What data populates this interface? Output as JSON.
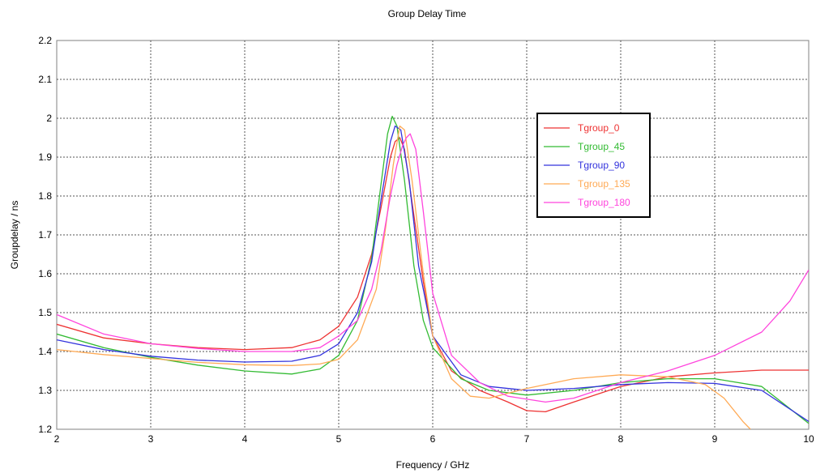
{
  "chart_data": {
    "type": "line",
    "title": "Group Delay Time",
    "xlabel": "Frequency / GHz",
    "ylabel": "Groupdelay / ns",
    "xlim": [
      2,
      10
    ],
    "ylim": [
      1.2,
      2.2
    ],
    "xticks": [
      "2",
      "3",
      "4",
      "5",
      "6",
      "7",
      "8",
      "9",
      "10"
    ],
    "yticks": [
      "1.2",
      "1.3",
      "1.4",
      "1.5",
      "1.6",
      "1.7",
      "1.8",
      "1.9",
      "2",
      "2.1",
      "2.2"
    ],
    "grid": true,
    "legend_position": "top-right",
    "series": [
      {
        "name": "Tgroup_0",
        "color": "#ee3333",
        "points": [
          [
            2,
            1.47
          ],
          [
            2.5,
            1.435
          ],
          [
            3,
            1.42
          ],
          [
            3.5,
            1.41
          ],
          [
            4,
            1.405
          ],
          [
            4.5,
            1.41
          ],
          [
            4.8,
            1.43
          ],
          [
            5,
            1.465
          ],
          [
            5.2,
            1.54
          ],
          [
            5.35,
            1.65
          ],
          [
            5.45,
            1.77
          ],
          [
            5.55,
            1.9
          ],
          [
            5.6,
            1.94
          ],
          [
            5.65,
            1.95
          ],
          [
            5.7,
            1.92
          ],
          [
            5.8,
            1.75
          ],
          [
            5.9,
            1.58
          ],
          [
            6,
            1.44
          ],
          [
            6.2,
            1.35
          ],
          [
            6.5,
            1.3
          ],
          [
            6.8,
            1.27
          ],
          [
            7,
            1.248
          ],
          [
            7.2,
            1.245
          ],
          [
            7.5,
            1.27
          ],
          [
            8,
            1.31
          ],
          [
            8.5,
            1.335
          ],
          [
            9,
            1.345
          ],
          [
            9.5,
            1.352
          ],
          [
            10,
            1.352
          ]
        ]
      },
      {
        "name": "Tgroup_45",
        "color": "#33bb33",
        "points": [
          [
            2,
            1.445
          ],
          [
            2.5,
            1.41
          ],
          [
            3,
            1.385
          ],
          [
            3.5,
            1.365
          ],
          [
            4,
            1.35
          ],
          [
            4.5,
            1.342
          ],
          [
            4.8,
            1.355
          ],
          [
            5,
            1.39
          ],
          [
            5.2,
            1.48
          ],
          [
            5.35,
            1.64
          ],
          [
            5.45,
            1.83
          ],
          [
            5.52,
            1.96
          ],
          [
            5.57,
            2.005
          ],
          [
            5.62,
            1.98
          ],
          [
            5.7,
            1.84
          ],
          [
            5.8,
            1.62
          ],
          [
            5.9,
            1.48
          ],
          [
            6,
            1.41
          ],
          [
            6.3,
            1.33
          ],
          [
            6.6,
            1.3
          ],
          [
            7,
            1.288
          ],
          [
            7.5,
            1.3
          ],
          [
            8,
            1.32
          ],
          [
            8.5,
            1.33
          ],
          [
            9,
            1.33
          ],
          [
            9.5,
            1.31
          ],
          [
            10,
            1.215
          ]
        ]
      },
      {
        "name": "Tgroup_90",
        "color": "#3333dd",
        "points": [
          [
            2,
            1.43
          ],
          [
            2.5,
            1.405
          ],
          [
            3,
            1.388
          ],
          [
            3.5,
            1.378
          ],
          [
            4,
            1.373
          ],
          [
            4.5,
            1.375
          ],
          [
            4.8,
            1.39
          ],
          [
            5,
            1.42
          ],
          [
            5.2,
            1.5
          ],
          [
            5.35,
            1.63
          ],
          [
            5.45,
            1.79
          ],
          [
            5.55,
            1.94
          ],
          [
            5.6,
            1.98
          ],
          [
            5.66,
            1.97
          ],
          [
            5.75,
            1.84
          ],
          [
            5.85,
            1.62
          ],
          [
            6,
            1.44
          ],
          [
            6.3,
            1.34
          ],
          [
            6.6,
            1.31
          ],
          [
            7,
            1.3
          ],
          [
            7.5,
            1.305
          ],
          [
            8,
            1.315
          ],
          [
            8.5,
            1.32
          ],
          [
            9,
            1.318
          ],
          [
            9.5,
            1.3
          ],
          [
            10,
            1.22
          ]
        ]
      },
      {
        "name": "Tgroup_135",
        "color": "#ffaa55",
        "points": [
          [
            2,
            1.405
          ],
          [
            2.5,
            1.392
          ],
          [
            3,
            1.382
          ],
          [
            3.5,
            1.372
          ],
          [
            4,
            1.366
          ],
          [
            4.5,
            1.364
          ],
          [
            4.8,
            1.368
          ],
          [
            5,
            1.38
          ],
          [
            5.2,
            1.43
          ],
          [
            5.4,
            1.56
          ],
          [
            5.5,
            1.72
          ],
          [
            5.58,
            1.88
          ],
          [
            5.65,
            1.98
          ],
          [
            5.7,
            1.97
          ],
          [
            5.78,
            1.84
          ],
          [
            5.9,
            1.6
          ],
          [
            6,
            1.44
          ],
          [
            6.2,
            1.33
          ],
          [
            6.4,
            1.285
          ],
          [
            6.6,
            1.28
          ],
          [
            7,
            1.305
          ],
          [
            7.5,
            1.33
          ],
          [
            8,
            1.34
          ],
          [
            8.5,
            1.335
          ],
          [
            8.9,
            1.315
          ],
          [
            9.1,
            1.28
          ],
          [
            9.3,
            1.22
          ],
          [
            9.38,
            1.2
          ]
        ]
      },
      {
        "name": "Tgroup_180",
        "color": "#ff44dd",
        "points": [
          [
            2,
            1.495
          ],
          [
            2.5,
            1.445
          ],
          [
            3,
            1.42
          ],
          [
            3.5,
            1.408
          ],
          [
            4,
            1.4
          ],
          [
            4.5,
            1.4
          ],
          [
            4.8,
            1.41
          ],
          [
            5,
            1.44
          ],
          [
            5.2,
            1.48
          ],
          [
            5.35,
            1.56
          ],
          [
            5.45,
            1.66
          ],
          [
            5.55,
            1.8
          ],
          [
            5.62,
            1.88
          ],
          [
            5.68,
            1.93
          ],
          [
            5.72,
            1.95
          ],
          [
            5.76,
            1.96
          ],
          [
            5.82,
            1.92
          ],
          [
            5.9,
            1.76
          ],
          [
            6,
            1.55
          ],
          [
            6.2,
            1.39
          ],
          [
            6.5,
            1.32
          ],
          [
            6.8,
            1.285
          ],
          [
            7.2,
            1.27
          ],
          [
            7.5,
            1.28
          ],
          [
            8,
            1.32
          ],
          [
            8.5,
            1.35
          ],
          [
            9,
            1.39
          ],
          [
            9.5,
            1.45
          ],
          [
            9.8,
            1.53
          ],
          [
            10,
            1.61
          ]
        ]
      }
    ]
  }
}
